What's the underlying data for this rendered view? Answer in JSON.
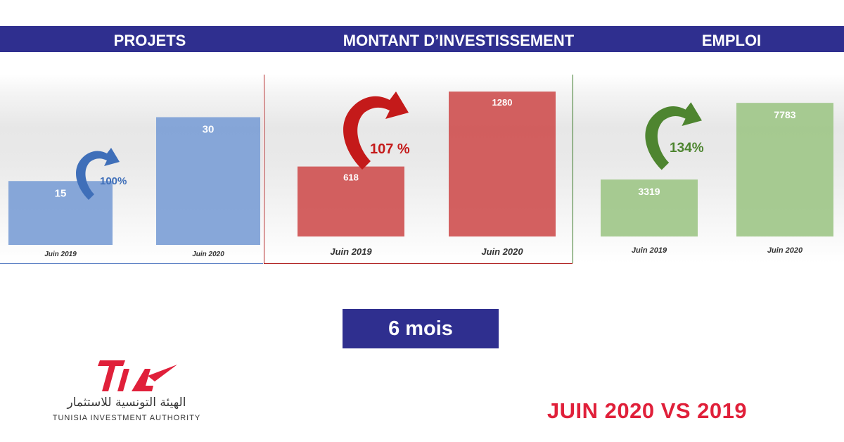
{
  "headers": {
    "projets": "PROJETS",
    "montant": "MONTANT D’INVESTISSEMENT",
    "emploi": "EMPLOI"
  },
  "chart_data": [
    {
      "type": "bar",
      "title": "PROJETS",
      "categories": [
        "Juin 2019",
        "Juin 2020"
      ],
      "values": [
        15,
        30
      ],
      "growth_label": "100%",
      "color": "#7d9fd6",
      "arrow_color": "#3f6fb9",
      "ylim": [
        0,
        40
      ]
    },
    {
      "type": "bar",
      "title": "MONTANT D’INVESTISSEMENT",
      "categories": [
        "Juin 2019",
        "Juin 2020"
      ],
      "values": [
        618,
        1280
      ],
      "growth_label": "107 %",
      "color": "#cf5252",
      "arrow_color": "#c41a1a",
      "ylim": [
        0,
        1430
      ]
    },
    {
      "type": "bar",
      "title": "EMPLOI",
      "categories": [
        "Juin 2019",
        "Juin 2020"
      ],
      "values": [
        3319,
        7783
      ],
      "growth_label": "134%",
      "color": "#9fc789",
      "arrow_color": "#4e8530",
      "ylim": [
        0,
        9430
      ]
    }
  ],
  "period_badge": "6 mois",
  "comparison_title": "JUIN 2020 VS 2019",
  "logo": {
    "mark": "TIA",
    "arabic": "الهيئة التونسية للاستثمار",
    "english": "TUNISIA INVESTMENT AUTHORITY"
  }
}
